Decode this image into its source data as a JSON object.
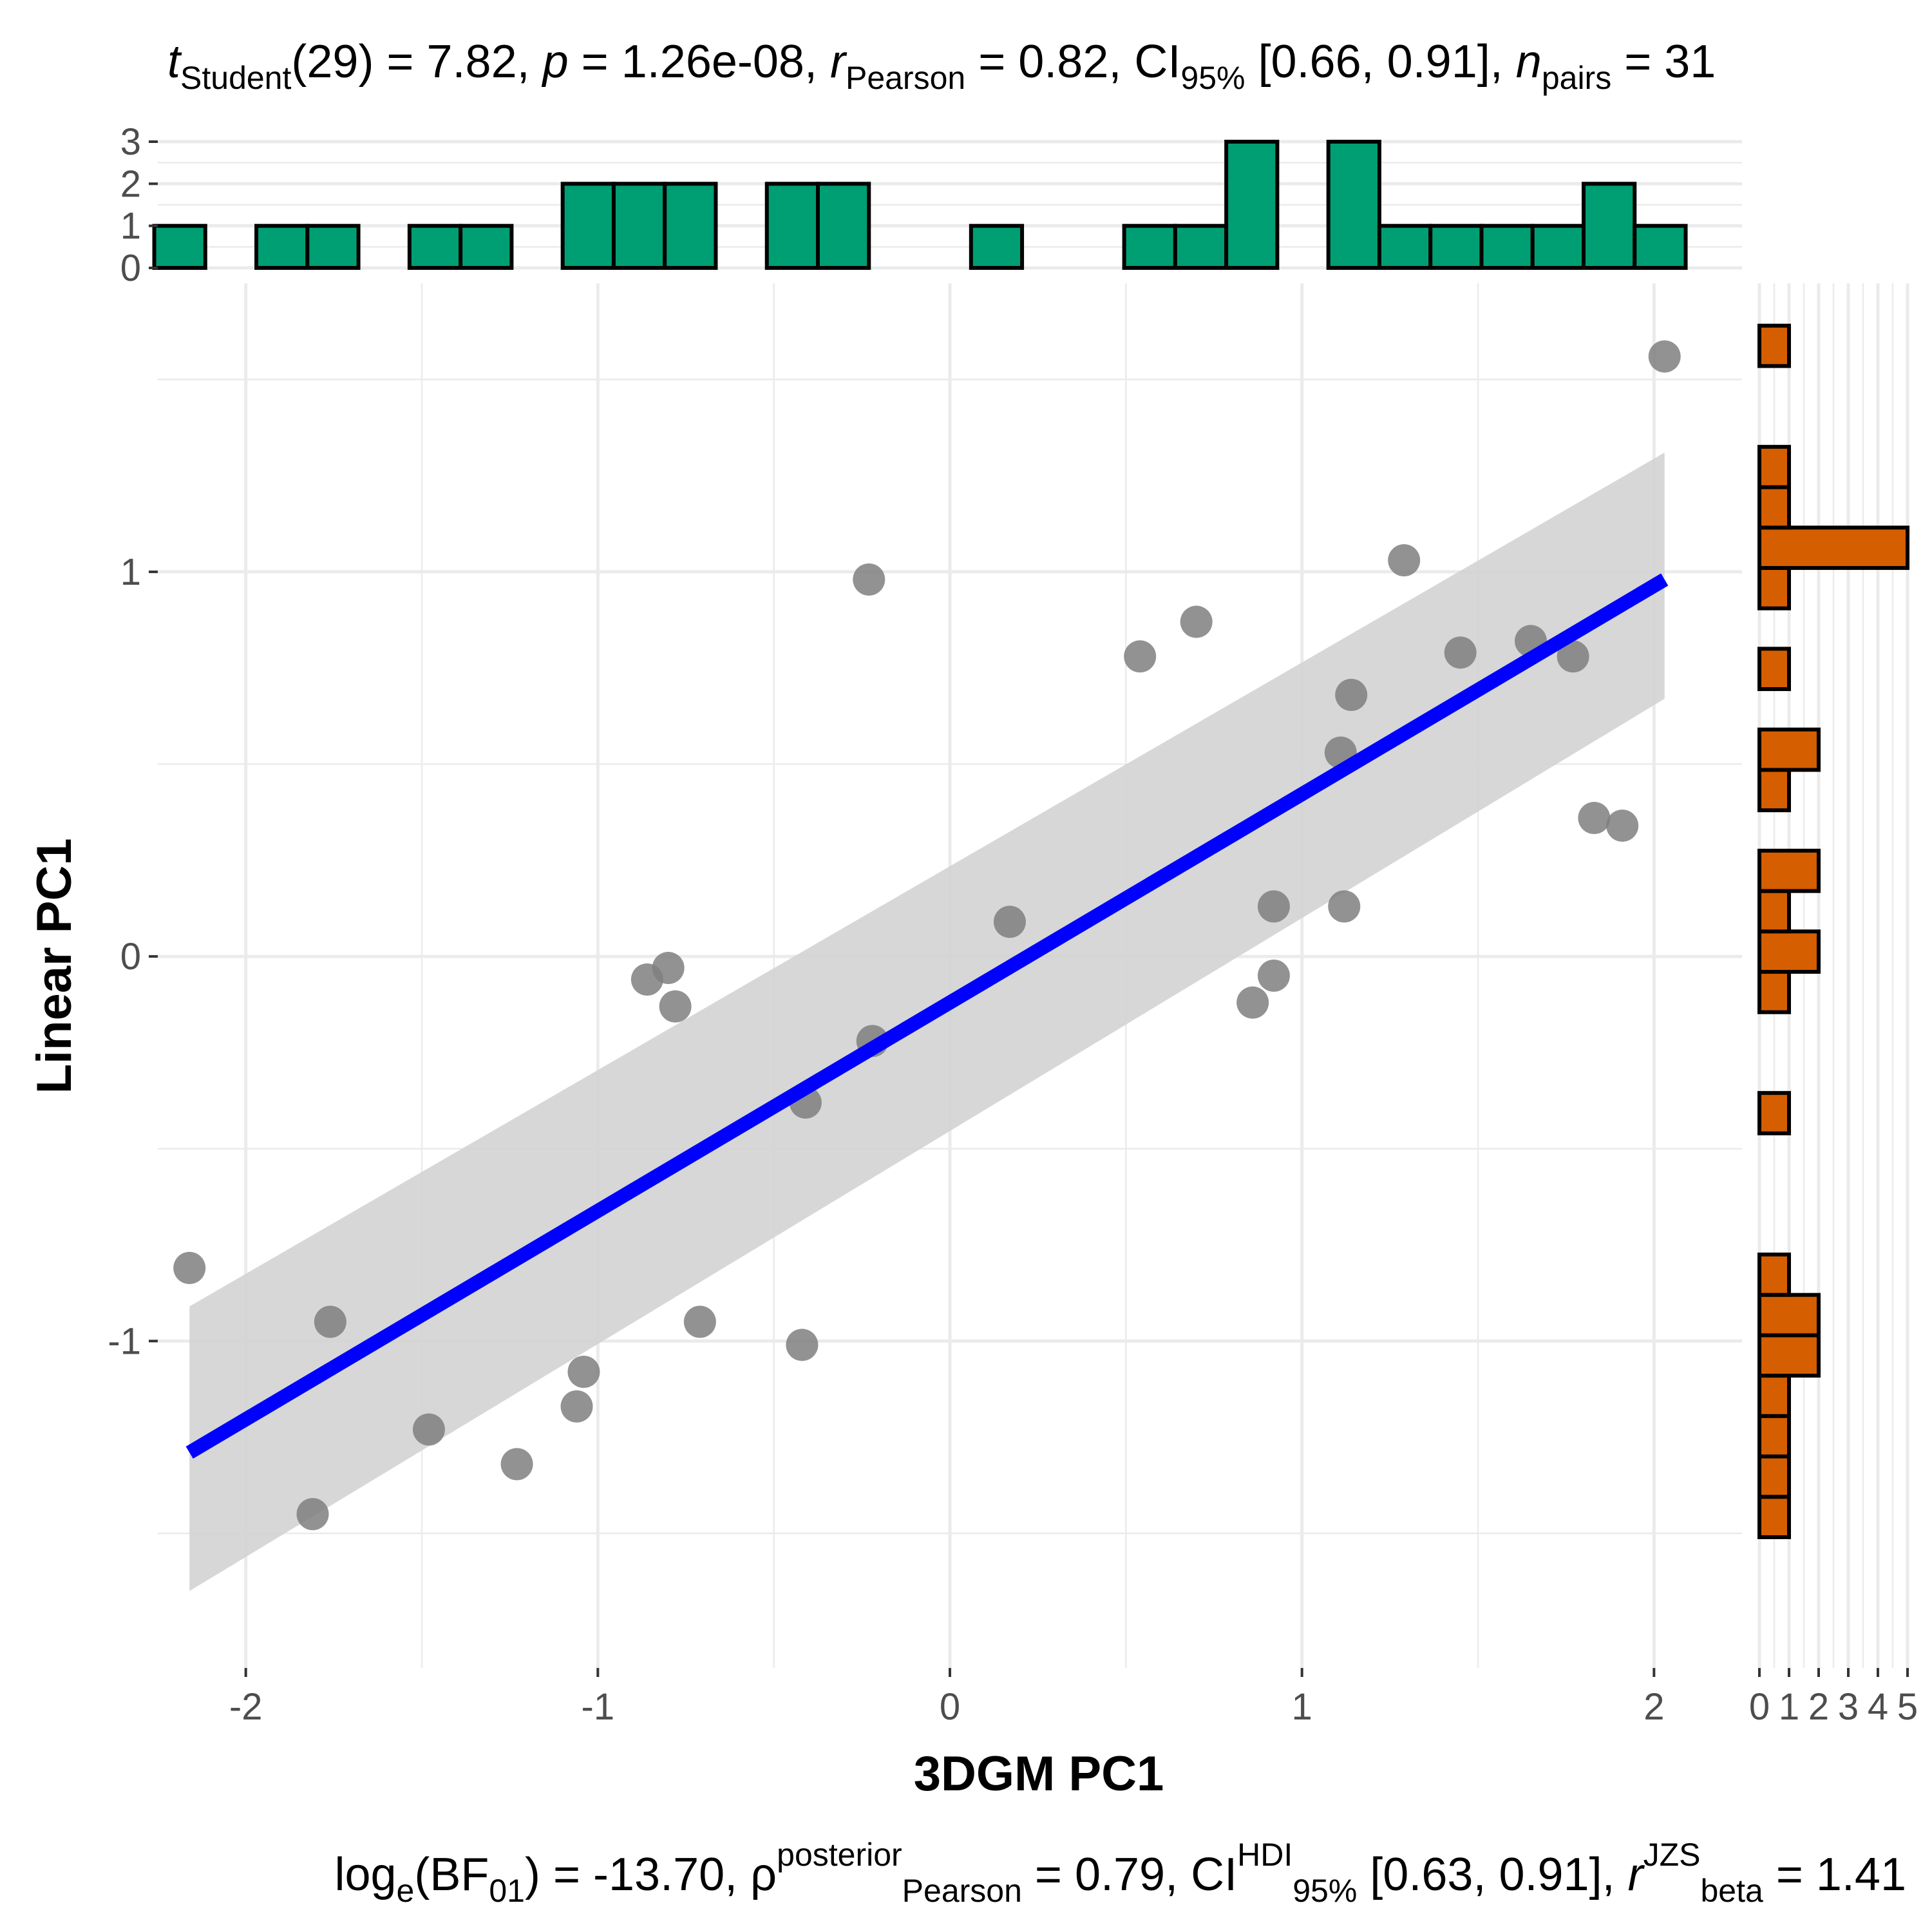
{
  "subtitle": {
    "t_symbol": "t",
    "t_sub": "Student",
    "t_rest": "(29) = 7.82, ",
    "p_symbol": "p",
    "p_rest": " = 1.26e-08, ",
    "r_hat": "^",
    "r_symbol": "r",
    "r_sub": "Pearson",
    "r_rest": " = 0.82, CI",
    "ci_sub": "95%",
    "ci_rest": " [0.66, 0.91], ",
    "n_symbol": "n",
    "n_sub": "pairs",
    "n_rest": " = 31"
  },
  "caption": {
    "log_text": "log",
    "log_sub": "e",
    "bf_open": "(BF",
    "bf_sub": "01",
    "bf_rest": ") = -13.70, ",
    "rho_hat": "^",
    "rho_symbol": "ρ",
    "rho_sup": "posterior",
    "rho_sub": "Pearson",
    "rho_rest": " = 0.79, CI",
    "ci_sup": "HDI",
    "ci_sub": "95%",
    "ci_rest": " [0.63, 0.91], ",
    "r_symbol": "r",
    "r_sup": "JZS",
    "r_sub": "beta",
    "r_rest": " = 1.41"
  },
  "colors": {
    "points": "#7f7f7f",
    "regression_line": "#0000ff",
    "confidence_band": "#d3d3d3",
    "top_histogram": "#009e73",
    "right_histogram": "#d55e00",
    "grid": "#ebebeb"
  },
  "chart_data": {
    "type": "scatter",
    "xlabel": "3DGM PC1",
    "ylabel": "Linear PC1",
    "xlim": [
      -2.25,
      2.25
    ],
    "ylim": [
      -1.85,
      1.75
    ],
    "x_ticks": [
      -2,
      -1,
      0,
      1,
      2
    ],
    "y_ticks": [
      -1,
      0,
      1
    ],
    "x_tick_labels": [
      "-2",
      "-1",
      "0",
      "1",
      "2"
    ],
    "y_tick_labels": [
      "-1",
      "0",
      "1"
    ],
    "grid": true,
    "points": [
      {
        "x": -2.16,
        "y": -0.81
      },
      {
        "x": -1.81,
        "y": -1.45
      },
      {
        "x": -1.76,
        "y": -0.95
      },
      {
        "x": -1.48,
        "y": -1.23
      },
      {
        "x": -1.23,
        "y": -1.32
      },
      {
        "x": -1.06,
        "y": -1.17
      },
      {
        "x": -1.04,
        "y": -1.08
      },
      {
        "x": -0.86,
        "y": -0.06
      },
      {
        "x": -0.8,
        "y": -0.03
      },
      {
        "x": -0.78,
        "y": -0.13
      },
      {
        "x": -0.71,
        "y": -0.95
      },
      {
        "x": -0.42,
        "y": -1.01
      },
      {
        "x": -0.41,
        "y": -0.38
      },
      {
        "x": -0.23,
        "y": 0.98
      },
      {
        "x": -0.22,
        "y": -0.22
      },
      {
        "x": 0.17,
        "y": 0.09
      },
      {
        "x": 0.54,
        "y": 0.78
      },
      {
        "x": 0.7,
        "y": 0.87
      },
      {
        "x": 0.86,
        "y": -0.12
      },
      {
        "x": 0.92,
        "y": -0.05
      },
      {
        "x": 0.92,
        "y": 0.13
      },
      {
        "x": 1.11,
        "y": 0.53
      },
      {
        "x": 1.12,
        "y": 0.13
      },
      {
        "x": 1.14,
        "y": 0.68
      },
      {
        "x": 1.29,
        "y": 1.03
      },
      {
        "x": 1.45,
        "y": 0.79
      },
      {
        "x": 1.65,
        "y": 0.82
      },
      {
        "x": 1.77,
        "y": 0.78
      },
      {
        "x": 1.83,
        "y": 0.36
      },
      {
        "x": 1.91,
        "y": 0.34
      },
      {
        "x": 2.03,
        "y": 1.56
      }
    ],
    "regression": {
      "x_range": [
        -2.16,
        2.03
      ],
      "y_range": [
        -1.29,
        0.98
      ],
      "ci_lower": [
        -1.65,
        0.67
      ],
      "ci_upper": [
        -0.91,
        1.31
      ]
    },
    "top_histogram": {
      "axis_ticks": [
        0,
        1,
        2,
        3
      ],
      "bin_edges": [
        -2.26,
        -2.115,
        -1.97,
        -1.825,
        -1.68,
        -1.535,
        -1.39,
        -1.245,
        -1.1,
        -0.955,
        -0.81,
        -0.665,
        -0.52,
        -0.375,
        -0.23,
        -0.085,
        0.06,
        0.205,
        0.35,
        0.495,
        0.64,
        0.785,
        0.93,
        1.075,
        1.22,
        1.365,
        1.51,
        1.655,
        1.8,
        1.945,
        2.09
      ],
      "counts": [
        1,
        0,
        1,
        1,
        0,
        1,
        1,
        0,
        2,
        2,
        2,
        0,
        2,
        2,
        0,
        0,
        1,
        0,
        0,
        1,
        1,
        3,
        0,
        3,
        1,
        1,
        1,
        1,
        2,
        1
      ]
    },
    "right_histogram": {
      "axis_ticks": [
        0,
        1,
        2,
        3,
        4,
        5
      ],
      "bin_edges": [
        -1.51,
        -1.405,
        -1.3,
        -1.195,
        -1.09,
        -0.985,
        -0.88,
        -0.775,
        -0.67,
        -0.565,
        -0.46,
        -0.355,
        -0.25,
        -0.145,
        -0.04,
        0.065,
        0.17,
        0.275,
        0.38,
        0.485,
        0.59,
        0.695,
        0.8,
        0.905,
        1.01,
        1.115,
        1.22,
        1.325,
        1.43,
        1.535,
        1.64
      ],
      "counts": [
        1,
        1,
        1,
        1,
        2,
        2,
        1,
        0,
        0,
        0,
        1,
        0,
        0,
        1,
        2,
        1,
        2,
        0,
        1,
        2,
        0,
        1,
        0,
        1,
        5,
        1,
        1,
        0,
        0,
        1
      ]
    }
  }
}
